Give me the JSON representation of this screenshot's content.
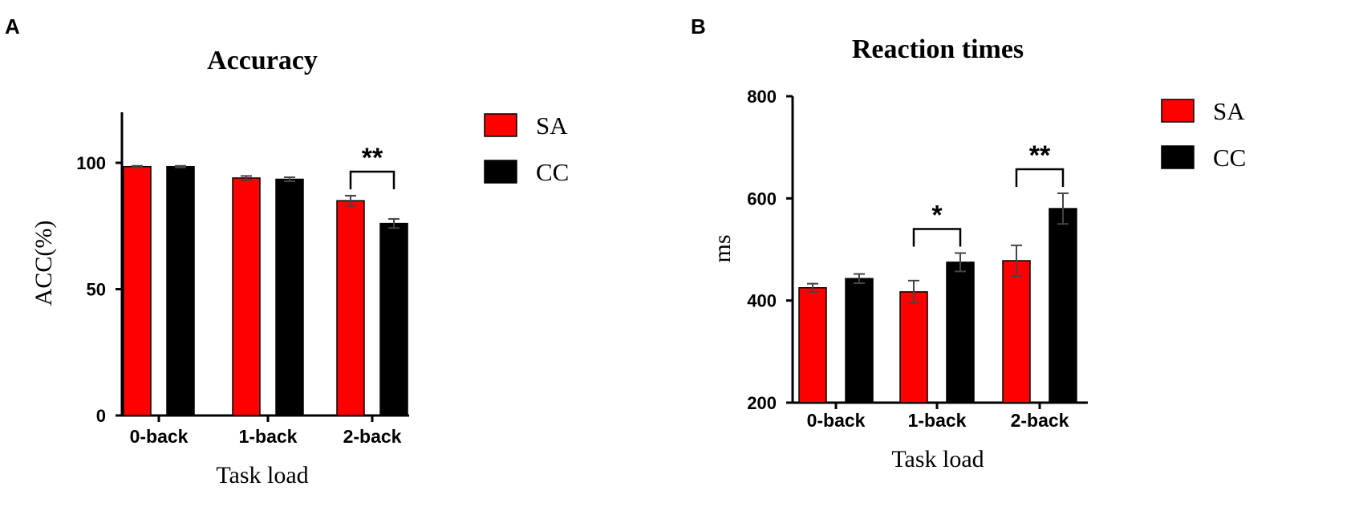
{
  "panels": [
    {
      "letter": "A"
    },
    {
      "letter": "B"
    }
  ],
  "colors": {
    "SA": "#ff0000",
    "CC": "#000000"
  },
  "chart_data": [
    {
      "type": "bar",
      "title": "Accuracy",
      "xlabel": "Task load",
      "ylabel": "ACC(%)",
      "categories": [
        "0-back",
        "1-back",
        "2-back"
      ],
      "series": [
        {
          "name": "SA",
          "values": [
            98.5,
            94,
            85
          ],
          "errors": [
            0.3,
            0.8,
            2.0
          ]
        },
        {
          "name": "CC",
          "values": [
            98.5,
            93.5,
            76
          ],
          "errors": [
            0.3,
            0.8,
            1.8
          ]
        }
      ],
      "ylim": [
        0,
        120
      ],
      "yticks": [
        0,
        50,
        100
      ],
      "ytick_labels": [
        "0",
        "50",
        "100"
      ],
      "significance": [
        {
          "category_index": 2,
          "label": "**"
        }
      ],
      "legend": [
        "SA",
        "CC"
      ],
      "legend_position": "right"
    },
    {
      "type": "bar",
      "title": "Reaction times",
      "xlabel": "Task load",
      "ylabel": "ms",
      "categories": [
        "0-back",
        "1-back",
        "2-back"
      ],
      "series": [
        {
          "name": "SA",
          "values": [
            425,
            417,
            478
          ],
          "errors": [
            8,
            22,
            30
          ]
        },
        {
          "name": "CC",
          "values": [
            443,
            475,
            580
          ],
          "errors": [
            9,
            18,
            30
          ]
        }
      ],
      "ylim": [
        200,
        800
      ],
      "yticks": [
        200,
        400,
        600,
        800
      ],
      "ytick_labels": [
        "200",
        "400",
        "600",
        "800"
      ],
      "significance": [
        {
          "category_index": 1,
          "label": "*"
        },
        {
          "category_index": 2,
          "label": "**"
        }
      ],
      "legend": [
        "SA",
        "CC"
      ],
      "legend_position": "right"
    }
  ]
}
